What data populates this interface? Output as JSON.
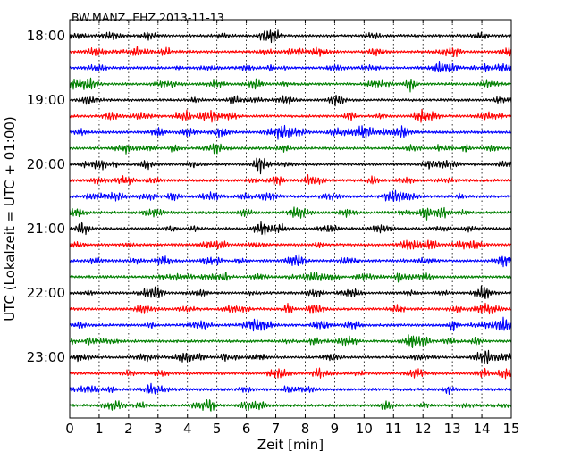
{
  "chart_data": {
    "type": "line",
    "title": "BW.MANZ..EHZ 2013-11-13",
    "xlabel": "Zeit  [min]",
    "ylabel": "UTC (Lokalzeit = UTC + 01:00)",
    "xlim": [
      0,
      15
    ],
    "x_ticks": [
      "0",
      "1",
      "2",
      "3",
      "4",
      "5",
      "6",
      "7",
      "8",
      "9",
      "10",
      "11",
      "12",
      "13",
      "14",
      "15"
    ],
    "y_ticks": [
      "18:00",
      "19:00",
      "20:00",
      "21:00",
      "22:00",
      "23:00"
    ],
    "trace_start_times": [
      "18:00",
      "18:15",
      "18:30",
      "18:45",
      "19:00",
      "19:15",
      "19:30",
      "19:45",
      "20:00",
      "20:15",
      "20:30",
      "20:45",
      "21:00",
      "21:15",
      "21:30",
      "21:45",
      "22:00",
      "22:15",
      "22:30",
      "22:45",
      "23:00",
      "23:15",
      "23:30",
      "23:45"
    ],
    "trace_colors": [
      "#000000",
      "#ff0000",
      "#0000ff",
      "#008000"
    ],
    "grid": "vertical dotted lines at each minute",
    "legend": "none"
  }
}
